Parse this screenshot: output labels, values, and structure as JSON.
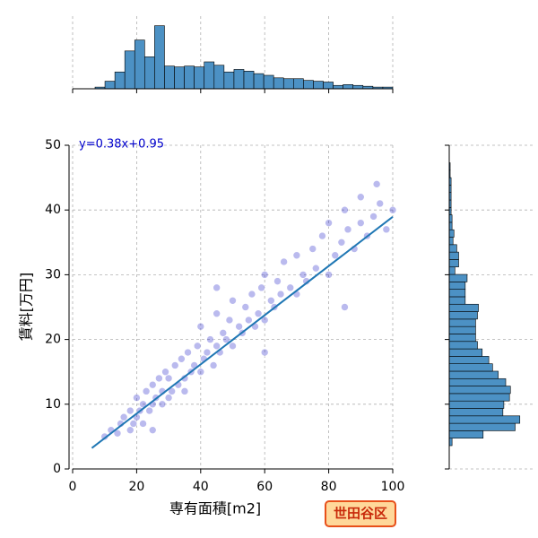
{
  "chart_data": [
    {
      "type": "scatter",
      "x_label": "専有面積[m2]",
      "y_label": "賃料[万円]",
      "annotation": "y=0.38x+0.95",
      "badge": "世田谷区",
      "color": "#1a1ac8",
      "line_color": "#1f77b4",
      "regression": {
        "slope": 0.38,
        "intercept": 0.95,
        "x_range": [
          6,
          100
        ]
      },
      "xlim": [
        0,
        100
      ],
      "ylim": [
        0,
        50
      ],
      "xticks": [
        0,
        20,
        40,
        60,
        80,
        100
      ],
      "yticks": [
        0,
        10,
        20,
        30,
        40,
        50
      ],
      "grid": true,
      "x": [
        10,
        12,
        14,
        15,
        16,
        18,
        18,
        19,
        20,
        20,
        21,
        22,
        22,
        23,
        24,
        25,
        25,
        26,
        27,
        28,
        28,
        29,
        30,
        30,
        31,
        32,
        33,
        34,
        35,
        35,
        36,
        37,
        38,
        39,
        40,
        40,
        41,
        42,
        43,
        44,
        45,
        45,
        46,
        47,
        48,
        49,
        50,
        50,
        52,
        53,
        54,
        55,
        56,
        57,
        58,
        59,
        60,
        60,
        62,
        63,
        64,
        65,
        66,
        68,
        70,
        70,
        72,
        73,
        75,
        76,
        78,
        80,
        80,
        82,
        84,
        85,
        86,
        88,
        90,
        90,
        92,
        94,
        95,
        96,
        98,
        100,
        60,
        45,
        25,
        85
      ],
      "y": [
        5,
        6,
        5.5,
        7,
        8,
        6,
        9,
        7,
        8,
        11,
        9,
        10,
        7,
        12,
        9,
        10,
        13,
        11,
        14,
        10,
        12,
        15,
        11,
        14,
        12,
        16,
        13,
        17,
        14,
        12,
        18,
        15,
        16,
        19,
        15,
        22,
        17,
        18,
        20,
        16,
        19,
        24,
        18,
        21,
        20,
        23,
        19,
        26,
        22,
        21,
        25,
        23,
        27,
        22,
        24,
        28,
        23,
        30,
        26,
        25,
        29,
        27,
        32,
        28,
        27,
        33,
        30,
        29,
        34,
        31,
        36,
        30,
        38,
        33,
        35,
        40,
        37,
        34,
        42,
        38,
        36,
        39,
        44,
        41,
        37,
        40,
        18,
        28,
        6,
        25
      ]
    },
    {
      "type": "histogram",
      "orientation": "vertical",
      "color": "#4c91c4",
      "bins": [
        7,
        10.1,
        13.2,
        16.3,
        19.4,
        22.5,
        25.6,
        28.7,
        31.8,
        34.9,
        38,
        41.1,
        44.2,
        47.3,
        50.4,
        53.5,
        56.6,
        59.7,
        62.8,
        65.9,
        69,
        72.1,
        75.2,
        78.3,
        81.4,
        84.5,
        87.6,
        90.7,
        93.8,
        96.9,
        100
      ],
      "values": [
        2,
        9,
        20,
        45,
        58,
        38,
        75,
        27,
        26,
        27,
        26,
        32,
        28,
        20,
        23,
        21,
        18,
        16,
        13,
        12,
        12,
        10,
        9,
        8,
        4,
        5,
        4,
        3,
        2,
        2
      ],
      "xlim": [
        0,
        100
      ],
      "ylim": [
        0,
        80
      ],
      "xticks": [
        0,
        20,
        40,
        60,
        80,
        100
      ],
      "grid": true
    },
    {
      "type": "histogram",
      "orientation": "horizontal",
      "color": "#4c91c4",
      "bins": [
        3.6,
        4.75,
        5.9,
        7.05,
        8.2,
        9.35,
        10.5,
        11.65,
        12.8,
        13.95,
        15.1,
        16.25,
        17.4,
        18.55,
        19.7,
        20.85,
        22,
        23.15,
        24.3,
        25.45,
        26.6,
        27.75,
        28.9,
        30.05,
        31.2,
        32.35,
        33.5,
        34.65,
        35.8,
        36.95,
        38.1,
        39.25,
        40.4,
        41.55,
        42.7,
        43.85,
        45,
        46.15,
        47.3
      ],
      "values": [
        3,
        36,
        70,
        75,
        57,
        58,
        64,
        65,
        60,
        52,
        46,
        42,
        35,
        30,
        28,
        28,
        28,
        30,
        31,
        17,
        17,
        17,
        19,
        6,
        10,
        10,
        8,
        4,
        5,
        3,
        3,
        2,
        2,
        2,
        2,
        2,
        1,
        1
      ],
      "xlim": [
        0,
        80
      ],
      "ylim": [
        0,
        50
      ],
      "yticks": [
        0,
        10,
        20,
        30,
        40,
        50
      ],
      "grid": true
    }
  ]
}
